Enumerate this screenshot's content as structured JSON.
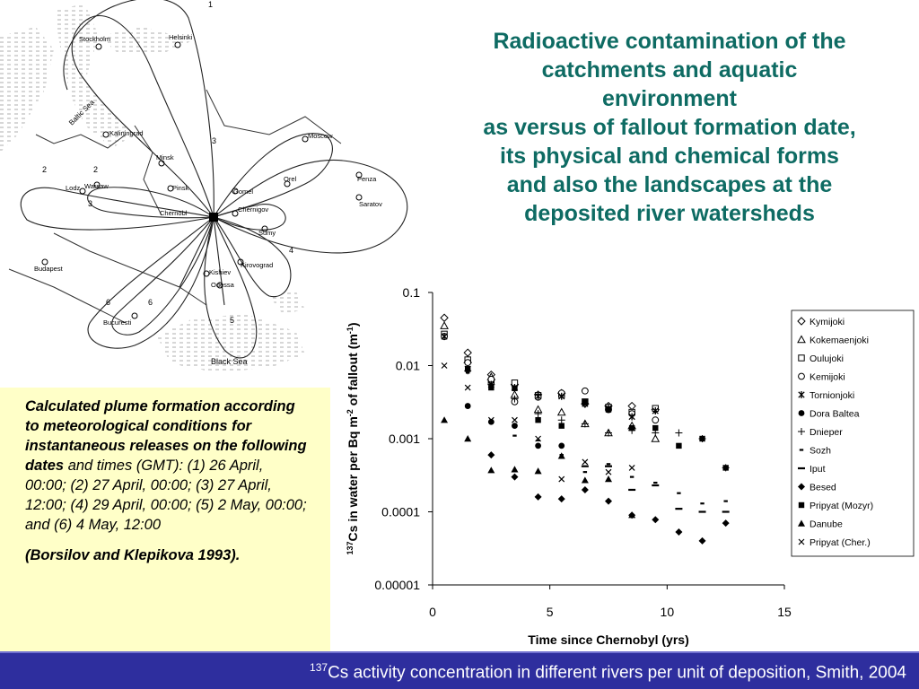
{
  "title_lines": [
    "Radioactive contamination of the",
    "catchments and aquatic",
    "environment",
    "as versus of fallout formation date,",
    "its physical and chemical forms",
    "and also  the landscapes at the",
    "deposited river watersheds"
  ],
  "caption": {
    "bold_text": "Calculated plume formation according to meteorological conditions for instantaneous releases on the following dates",
    "text": " and times (GMT): (1) 26 April, 00:00; (2) 27 April, 00:00; (3) 27 April, 12:00; (4) 29 April, 00:00; (5) 2 May, 00:00; and (6) 4 May, 12:00",
    "reference": "(Borsilov and Klepikova 1993)."
  },
  "map": {
    "cities": [
      "Stockholm",
      "Helsinki",
      "Baltic Sea",
      "Kaliningrad",
      "Moscow",
      "Minsk",
      "Lodz",
      "Warsaw",
      "Pinsk",
      "Gomel",
      "Orel",
      "Penza",
      "Saratov",
      "Chernobl",
      "Chernigov",
      "Sumy",
      "Kirovograd",
      "Budapest",
      "Kishiev",
      "Odessa",
      "Bucuresti",
      "Black Sea"
    ],
    "plume_numbers": [
      "1",
      "2",
      "3",
      "4",
      "5",
      "6"
    ]
  },
  "footer": {
    "superscript": "137",
    "text": "Cs activity concentration in different rivers per unit of deposition, Smith, 2004"
  },
  "chart_data": {
    "type": "scatter",
    "title": "",
    "xlabel": "Time since Chernobyl (yrs)",
    "ylabel_sup": "137",
    "ylabel_main": "Cs in water per Bq m",
    "ylabel_sup2": "-2",
    "ylabel_tail": " of fallout (m",
    "ylabel_sup3": "-1",
    "ylabel_end": ")",
    "xlim": [
      0,
      15
    ],
    "ylim": [
      1e-05,
      0.1
    ],
    "yscale": "log",
    "x_ticks": [
      "0",
      "5",
      "10",
      "15"
    ],
    "y_ticks": [
      "0.1",
      "0.01",
      "0.001",
      "0.0001",
      "0.00001"
    ],
    "legend_position": "right",
    "series": [
      {
        "name": "Kymijoki",
        "marker": "diamond-open",
        "points": [
          [
            0.5,
            0.045
          ],
          [
            1.5,
            0.015
          ],
          [
            2.5,
            0.0075
          ],
          [
            3.5,
            0.0055
          ],
          [
            4.5,
            0.004
          ],
          [
            5.5,
            0.0042
          ],
          [
            6.5,
            0.003
          ],
          [
            7.5,
            0.0028
          ],
          [
            8.5,
            0.0028
          ],
          [
            9.5,
            0.0025
          ]
        ]
      },
      {
        "name": "Kokemaenjoki",
        "marker": "triangle-open",
        "points": [
          [
            0.5,
            0.035
          ],
          [
            1.5,
            0.012
          ],
          [
            2.5,
            0.007
          ],
          [
            3.5,
            0.004
          ],
          [
            4.5,
            0.0025
          ],
          [
            5.5,
            0.0023
          ],
          [
            6.5,
            0.0016
          ],
          [
            7.5,
            0.0012
          ],
          [
            8.5,
            0.0015
          ],
          [
            9.5,
            0.001
          ]
        ]
      },
      {
        "name": "Oulujoki",
        "marker": "square-open",
        "points": [
          [
            0.5,
            0.027
          ],
          [
            1.5,
            0.012
          ],
          [
            2.5,
            0.006
          ],
          [
            3.5,
            0.0058
          ],
          [
            4.5,
            0.0039
          ],
          [
            5.5,
            0.004
          ],
          [
            6.5,
            0.0032
          ],
          [
            7.5,
            0.0027
          ],
          [
            8.5,
            0.0023
          ],
          [
            9.5,
            0.0026
          ]
        ]
      },
      {
        "name": "Kemijoki",
        "marker": "circle-open",
        "points": [
          [
            0.5,
            0.025
          ],
          [
            1.5,
            0.011
          ],
          [
            2.5,
            0.0065
          ],
          [
            3.5,
            0.0032
          ],
          [
            4.5,
            0.0037
          ],
          [
            5.5,
            0.0042
          ],
          [
            6.5,
            0.0045
          ],
          [
            7.5,
            0.0025
          ],
          [
            8.5,
            0.0022
          ],
          [
            9.5,
            0.0018
          ]
        ]
      },
      {
        "name": "Tornionjoki",
        "marker": "star",
        "points": [
          [
            0.5,
            0.025
          ],
          [
            1.5,
            0.009
          ],
          [
            2.5,
            0.0055
          ],
          [
            3.5,
            0.005
          ],
          [
            4.5,
            0.0038
          ],
          [
            5.5,
            0.0038
          ],
          [
            6.5,
            0.003
          ],
          [
            7.5,
            0.0026
          ],
          [
            8.5,
            0.002
          ],
          [
            9.5,
            0.0024
          ]
        ]
      },
      {
        "name": "Dora Baltea",
        "marker": "circle-filled",
        "points": [
          [
            1.5,
            0.0028
          ],
          [
            2.5,
            0.0017
          ],
          [
            3.5,
            0.0015
          ],
          [
            4.5,
            0.0008
          ],
          [
            5.5,
            0.0008
          ]
        ]
      },
      {
        "name": "Dnieper",
        "marker": "plus",
        "points": [
          [
            1.5,
            0.0085
          ],
          [
            2.5,
            0.0055
          ],
          [
            3.5,
            0.0035
          ],
          [
            4.5,
            0.0022
          ],
          [
            5.5,
            0.0018
          ],
          [
            6.5,
            0.0016
          ],
          [
            7.5,
            0.0012
          ],
          [
            8.5,
            0.0013
          ],
          [
            9.5,
            0.0012
          ],
          [
            10.5,
            0.0012
          ],
          [
            11.5,
            0.001
          ],
          [
            12.5,
            0.0004
          ]
        ]
      },
      {
        "name": "Sozh",
        "marker": "dash-short",
        "points": [
          [
            1.5,
            0.008
          ],
          [
            2.5,
            0.0055
          ],
          [
            3.5,
            0.0011
          ],
          [
            4.5,
            0.00095
          ],
          [
            5.5,
            0.0006
          ],
          [
            6.5,
            0.00035
          ],
          [
            7.5,
            0.00045
          ],
          [
            8.5,
            0.0003
          ],
          [
            9.5,
            0.00025
          ],
          [
            10.5,
            0.00018
          ],
          [
            11.5,
            0.00013
          ],
          [
            12.5,
            0.00014
          ]
        ]
      },
      {
        "name": "Iput",
        "marker": "dash",
        "points": [
          [
            6.5,
            0.00042
          ],
          [
            7.5,
            0.00042
          ],
          [
            8.5,
            0.0002
          ],
          [
            9.5,
            0.00023
          ],
          [
            10.5,
            0.00011
          ],
          [
            11.5,
            0.0001
          ],
          [
            12.5,
            0.0001
          ]
        ]
      },
      {
        "name": "Besed",
        "marker": "diamond-filled",
        "points": [
          [
            2.5,
            0.0006
          ],
          [
            3.5,
            0.0003
          ],
          [
            4.5,
            0.00016
          ],
          [
            5.5,
            0.00015
          ],
          [
            6.5,
            0.0002
          ],
          [
            7.5,
            0.00014
          ],
          [
            8.5,
            9e-05
          ],
          [
            9.5,
            7.8e-05
          ],
          [
            10.5,
            5.3e-05
          ],
          [
            11.5,
            4e-05
          ],
          [
            12.5,
            7e-05
          ]
        ]
      },
      {
        "name": "Pripyat (Mozyr)",
        "marker": "square-filled",
        "points": [
          [
            1.5,
            0.009
          ],
          [
            2.5,
            0.005
          ],
          [
            3.5,
            0.0049
          ],
          [
            4.5,
            0.0018
          ],
          [
            5.5,
            0.0015
          ],
          [
            6.5,
            0.0032
          ],
          [
            7.5,
            0.0025
          ],
          [
            8.5,
            0.0014
          ],
          [
            9.5,
            0.0014
          ],
          [
            10.5,
            0.0008
          ],
          [
            11.5,
            0.001
          ],
          [
            12.5,
            0.0004
          ]
        ]
      },
      {
        "name": "Danube",
        "marker": "triangle-filled",
        "points": [
          [
            0.5,
            0.0018
          ],
          [
            1.5,
            0.001
          ],
          [
            2.5,
            0.00037
          ],
          [
            3.5,
            0.00038
          ],
          [
            4.5,
            0.00036
          ],
          [
            5.5,
            0.00058
          ],
          [
            6.5,
            0.00027
          ],
          [
            7.5,
            0.00028
          ],
          [
            8.5,
            9e-05
          ]
        ]
      },
      {
        "name": "Pripyat (Cher.)",
        "marker": "x",
        "points": [
          [
            0.5,
            0.01
          ],
          [
            1.5,
            0.005
          ],
          [
            2.5,
            0.0018
          ],
          [
            3.5,
            0.0018
          ],
          [
            4.5,
            0.001
          ],
          [
            5.5,
            0.00028
          ],
          [
            6.5,
            0.00048
          ],
          [
            7.5,
            0.00035
          ],
          [
            8.5,
            0.0004
          ]
        ]
      }
    ]
  }
}
